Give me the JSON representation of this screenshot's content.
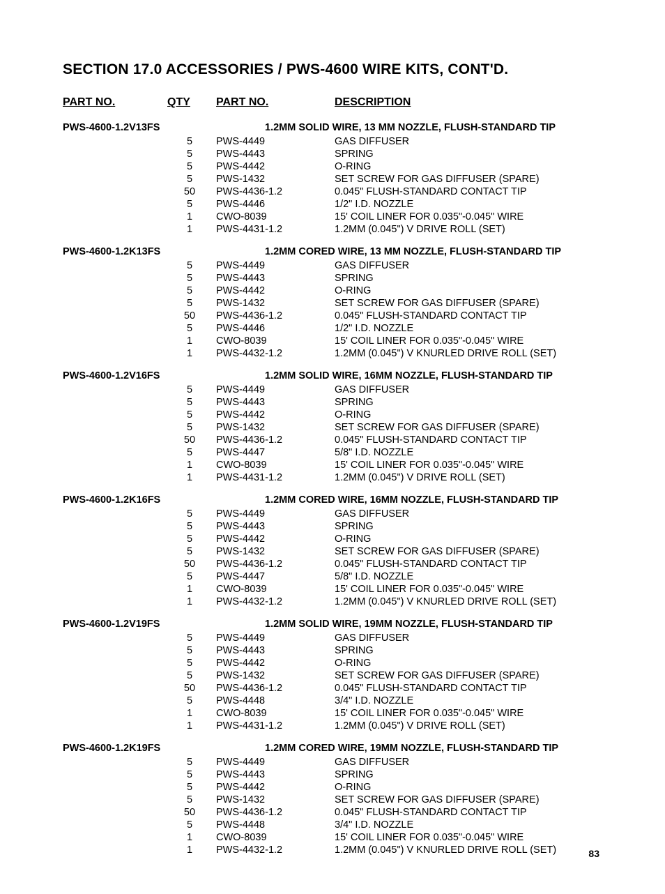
{
  "sectionTitle": "SECTION 17.0 ACCESSORIES / PWS-4600 WIRE KITS, CONT'D.",
  "pageNumber": "83",
  "columns": {
    "partNoKit": "PART NO.",
    "qty": "QTY",
    "partNo": "PART NO.",
    "description": "DESCRIPTION"
  },
  "style": {
    "background": "#ffffff",
    "textColor": "#000000",
    "titleFontSize": 21,
    "headerFontSize": 16,
    "bodyFontSize": 14.5
  },
  "kits": [
    {
      "partNo": "PWS-4600-1.2V13FS",
      "title": "1.2MM SOLID WIRE, 13 MM NOZZLE, FLUSH-STANDARD TIP",
      "items": [
        {
          "qty": "5",
          "part": "PWS-4449",
          "desc": "GAS DIFFUSER"
        },
        {
          "qty": "5",
          "part": "PWS-4443",
          "desc": "SPRING"
        },
        {
          "qty": "5",
          "part": "PWS-4442",
          "desc": "O-RING"
        },
        {
          "qty": "5",
          "part": "PWS-1432",
          "desc": "SET SCREW FOR GAS DIFFUSER (SPARE)"
        },
        {
          "qty": "50",
          "part": "PWS-4436-1.2",
          "desc": "0.045\" FLUSH-STANDARD CONTACT TIP"
        },
        {
          "qty": "5",
          "part": "PWS-4446",
          "desc": "1/2\" I.D. NOZZLE"
        },
        {
          "qty": "1",
          "part": "CWO-8039",
          "desc": "15' COIL LINER FOR 0.035\"-0.045\" WIRE"
        },
        {
          "qty": "1",
          "part": "PWS-4431-1.2",
          "desc": "1.2MM (0.045\") V DRIVE ROLL (SET)"
        }
      ]
    },
    {
      "partNo": "PWS-4600-1.2K13FS",
      "title": "1.2MM CORED WIRE, 13 MM NOZZLE, FLUSH-STANDARD TIP",
      "items": [
        {
          "qty": "5",
          "part": "PWS-4449",
          "desc": "GAS DIFFUSER"
        },
        {
          "qty": "5",
          "part": "PWS-4443",
          "desc": "SPRING"
        },
        {
          "qty": "5",
          "part": "PWS-4442",
          "desc": "O-RING"
        },
        {
          "qty": "5",
          "part": "PWS-1432",
          "desc": "SET SCREW FOR GAS DIFFUSER (SPARE)"
        },
        {
          "qty": "50",
          "part": "PWS-4436-1.2",
          "desc": "0.045\" FLUSH-STANDARD CONTACT TIP"
        },
        {
          "qty": "5",
          "part": "PWS-4446",
          "desc": "1/2\" I.D. NOZZLE"
        },
        {
          "qty": "1",
          "part": "CWO-8039",
          "desc": "15' COIL LINER FOR 0.035\"-0.045\" WIRE"
        },
        {
          "qty": "1",
          "part": "PWS-4432-1.2",
          "desc": "1.2MM (0.045\") V KNURLED DRIVE ROLL (SET)"
        }
      ]
    },
    {
      "partNo": "PWS-4600-1.2V16FS",
      "title": "1.2MM SOLID WIRE, 16MM NOZZLE, FLUSH-STANDARD TIP",
      "items": [
        {
          "qty": "5",
          "part": "PWS-4449",
          "desc": "GAS DIFFUSER"
        },
        {
          "qty": "5",
          "part": "PWS-4443",
          "desc": "SPRING"
        },
        {
          "qty": "5",
          "part": "PWS-4442",
          "desc": "O-RING"
        },
        {
          "qty": "5",
          "part": "PWS-1432",
          "desc": "SET SCREW FOR GAS DIFFUSER (SPARE)"
        },
        {
          "qty": "50",
          "part": "PWS-4436-1.2",
          "desc": "0.045\" FLUSH-STANDARD CONTACT TIP"
        },
        {
          "qty": "5",
          "part": "PWS-4447",
          "desc": "5/8\" I.D. NOZZLE"
        },
        {
          "qty": "1",
          "part": "CWO-8039",
          "desc": "15' COIL LINER FOR 0.035\"-0.045\" WIRE"
        },
        {
          "qty": "1",
          "part": "PWS-4431-1.2",
          "desc": "1.2MM (0.045\") V DRIVE ROLL (SET)"
        }
      ]
    },
    {
      "partNo": "PWS-4600-1.2K16FS",
      "title": "1.2MM CORED WIRE, 16MM NOZZLE, FLUSH-STANDARD TIP",
      "items": [
        {
          "qty": "5",
          "part": "PWS-4449",
          "desc": "GAS DIFFUSER"
        },
        {
          "qty": "5",
          "part": "PWS-4443",
          "desc": "SPRING"
        },
        {
          "qty": "5",
          "part": "PWS-4442",
          "desc": "O-RING"
        },
        {
          "qty": "5",
          "part": "PWS-1432",
          "desc": "SET SCREW FOR GAS DIFFUSER (SPARE)"
        },
        {
          "qty": "50",
          "part": "PWS-4436-1.2",
          "desc": "0.045\" FLUSH-STANDARD CONTACT TIP"
        },
        {
          "qty": "5",
          "part": "PWS-4447",
          "desc": "5/8\" I.D. NOZZLE"
        },
        {
          "qty": "1",
          "part": "CWO-8039",
          "desc": "15' COIL LINER FOR 0.035\"-0.045\" WIRE"
        },
        {
          "qty": "1",
          "part": "PWS-4432-1.2",
          "desc": "1.2MM (0.045\") V KNURLED DRIVE ROLL (SET)"
        }
      ]
    },
    {
      "partNo": "PWS-4600-1.2V19FS",
      "title": "1.2MM SOLID WIRE, 19MM NOZZLE, FLUSH-STANDARD TIP",
      "items": [
        {
          "qty": "5",
          "part": "PWS-4449",
          "desc": "GAS DIFFUSER"
        },
        {
          "qty": "5",
          "part": "PWS-4443",
          "desc": "SPRING"
        },
        {
          "qty": "5",
          "part": "PWS-4442",
          "desc": "O-RING"
        },
        {
          "qty": "5",
          "part": "PWS-1432",
          "desc": "SET SCREW FOR GAS DIFFUSER (SPARE)"
        },
        {
          "qty": "50",
          "part": "PWS-4436-1.2",
          "desc": "0.045\" FLUSH-STANDARD CONTACT TIP"
        },
        {
          "qty": "5",
          "part": "PWS-4448",
          "desc": "3/4\" I.D. NOZZLE"
        },
        {
          "qty": "1",
          "part": "CWO-8039",
          "desc": "15' COIL LINER FOR 0.035\"-0.045\" WIRE"
        },
        {
          "qty": "1",
          "part": "PWS-4431-1.2",
          "desc": "1.2MM (0.045\") V DRIVE ROLL (SET)"
        }
      ]
    },
    {
      "partNo": "PWS-4600-1.2K19FS",
      "title": "1.2MM CORED WIRE, 19MM NOZZLE, FLUSH-STANDARD TIP",
      "items": [
        {
          "qty": "5",
          "part": "PWS-4449",
          "desc": "GAS DIFFUSER"
        },
        {
          "qty": "5",
          "part": "PWS-4443",
          "desc": "SPRING"
        },
        {
          "qty": "5",
          "part": "PWS-4442",
          "desc": "O-RING"
        },
        {
          "qty": "5",
          "part": "PWS-1432",
          "desc": "SET SCREW FOR GAS DIFFUSER (SPARE)"
        },
        {
          "qty": "50",
          "part": "PWS-4436-1.2",
          "desc": "0.045\" FLUSH-STANDARD CONTACT TIP"
        },
        {
          "qty": "5",
          "part": "PWS-4448",
          "desc": "3/4\" I.D. NOZZLE"
        },
        {
          "qty": "1",
          "part": "CWO-8039",
          "desc": "15' COIL LINER FOR 0.035\"-0.045\" WIRE"
        },
        {
          "qty": "1",
          "part": "PWS-4432-1.2",
          "desc": "1.2MM (0.045\") V KNURLED DRIVE ROLL (SET)"
        }
      ]
    }
  ]
}
